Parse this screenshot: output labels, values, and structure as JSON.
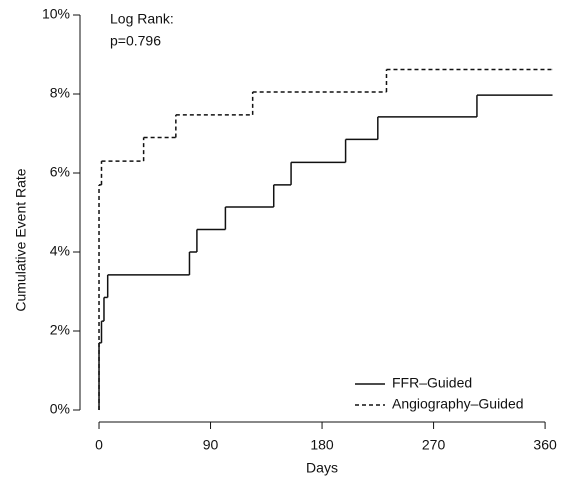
{
  "chart_data": {
    "type": "step",
    "annotation": [
      "Log Rank:",
      "p=0.796"
    ],
    "x_label": "Days",
    "y_label": "Cumulative Event Rate",
    "series": [
      {
        "name": "FFR–Guided",
        "color": "#111111",
        "dash": "solid",
        "x": [
          0,
          0,
          2,
          4,
          7,
          73,
          79,
          102,
          141,
          155,
          199,
          225,
          305,
          366
        ],
        "values": [
          0,
          1.7,
          2.25,
          2.85,
          3.42,
          4.0,
          4.57,
          5.14,
          5.7,
          6.27,
          6.85,
          7.42,
          7.97,
          7.97
        ]
      },
      {
        "name": "Angiography–Guided",
        "color": "#111111",
        "dash": "dashed",
        "x": [
          0,
          0,
          2,
          36,
          62,
          124,
          232,
          366
        ],
        "values": [
          0,
          5.7,
          6.3,
          6.9,
          7.47,
          8.05,
          8.62,
          8.62
        ]
      }
    ],
    "xlim": [
      -3,
      368
    ],
    "xticks": [
      0,
      90,
      180,
      270,
      360
    ],
    "ylim": [
      0,
      10
    ],
    "yticks": [
      {
        "value": 0,
        "label": "0%"
      },
      {
        "value": 2,
        "label": "2%"
      },
      {
        "value": 4,
        "label": "4%"
      },
      {
        "value": 6,
        "label": "6%"
      },
      {
        "value": 8,
        "label": "8%"
      },
      {
        "value": 10,
        "label": "10%"
      }
    ],
    "legend": "bottom-right"
  }
}
